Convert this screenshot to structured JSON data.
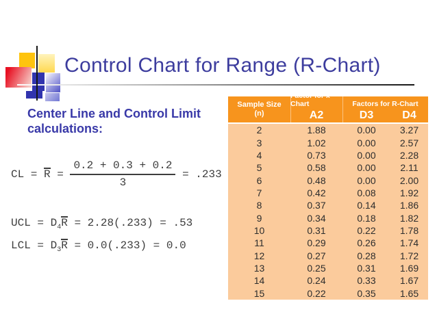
{
  "slide": {
    "title": "Control Chart for Range (R-Chart)",
    "heading_line1": "Center Line and Control Limit",
    "heading_line2": "calculations:"
  },
  "formulas": {
    "cl": {
      "prefix": "CL = ",
      "rbar": "R",
      "equals": " = ",
      "numerator": "0.2 + 0.3 + 0.2",
      "denominator": "3",
      "result": " = .233"
    },
    "ucl": {
      "prefix": "UCL = D",
      "sub": "4",
      "rbar": "R",
      "rest": " = 2.28(.233) = .53"
    },
    "lcl": {
      "prefix": "LCL = D",
      "sub": "3",
      "rbar": "R",
      "rest": " = 0.0(.233) = 0.0"
    }
  },
  "table": {
    "header": {
      "sample_size_line1": "Sample Size",
      "sample_size_line2": "(n)",
      "group_xchart": "Factor for x-Chart",
      "group_rchart": "Factors for R-Chart",
      "col_a2": "A2",
      "col_d3": "D3",
      "col_d4": "D4"
    },
    "rows": [
      {
        "n": "2",
        "a2": "1.88",
        "d3": "0.00",
        "d4": "3.27"
      },
      {
        "n": "3",
        "a2": "1.02",
        "d3": "0.00",
        "d4": "2.57"
      },
      {
        "n": "4",
        "a2": "0.73",
        "d3": "0.00",
        "d4": "2.28"
      },
      {
        "n": "5",
        "a2": "0.58",
        "d3": "0.00",
        "d4": "2.11"
      },
      {
        "n": "6",
        "a2": "0.48",
        "d3": "0.00",
        "d4": "2.00"
      },
      {
        "n": "7",
        "a2": "0.42",
        "d3": "0.08",
        "d4": "1.92"
      },
      {
        "n": "8",
        "a2": "0.37",
        "d3": "0.14",
        "d4": "1.86"
      },
      {
        "n": "9",
        "a2": "0.34",
        "d3": "0.18",
        "d4": "1.82"
      },
      {
        "n": "10",
        "a2": "0.31",
        "d3": "0.22",
        "d4": "1.78"
      },
      {
        "n": "11",
        "a2": "0.29",
        "d3": "0.26",
        "d4": "1.74"
      },
      {
        "n": "12",
        "a2": "0.27",
        "d3": "0.28",
        "d4": "1.72"
      },
      {
        "n": "13",
        "a2": "0.25",
        "d3": "0.31",
        "d4": "1.69"
      },
      {
        "n": "14",
        "a2": "0.24",
        "d3": "0.33",
        "d4": "1.67"
      },
      {
        "n": "15",
        "a2": "0.22",
        "d3": "0.35",
        "d4": "1.65"
      }
    ]
  },
  "colors": {
    "title_blue": "#3d3d9e",
    "heading_blue": "#3939a8",
    "formula_gray": "#3d3d3d",
    "header_orange": "#f7941d",
    "row_peach": "#fbcb9c",
    "accent_gold": "#fec40e",
    "accent_blue": "#3134ae",
    "accent_red": "#e81123"
  }
}
